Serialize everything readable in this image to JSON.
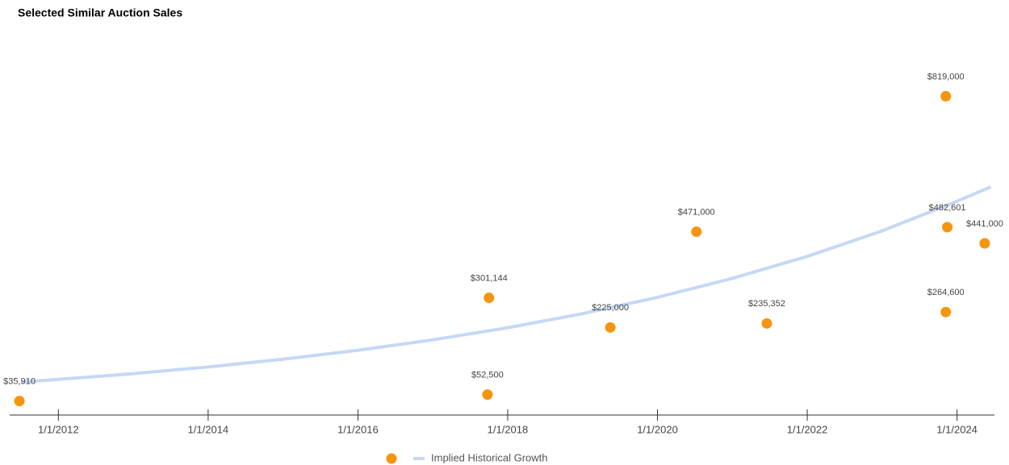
{
  "chart_data": {
    "type": "scatter",
    "title": "Selected Similar Auction Sales",
    "xlim": [
      2011.35,
      2024.5
    ],
    "xticks": [
      {
        "value": 2012,
        "label": "1/1/2012"
      },
      {
        "value": 2014,
        "label": "1/1/2014"
      },
      {
        "value": 2016,
        "label": "1/1/2016"
      },
      {
        "value": 2018,
        "label": "1/1/2018"
      },
      {
        "value": 2020,
        "label": "1/1/2020"
      },
      {
        "value": 2022,
        "label": "1/1/2022"
      },
      {
        "value": 2024,
        "label": "1/1/2024"
      }
    ],
    "ylim": [
      0,
      1000000
    ],
    "series": [
      {
        "type": "scatter",
        "color": "#f5950f",
        "x": [
          2011.48,
          2017.73,
          2017.75,
          2019.37,
          2020.52,
          2021.46,
          2023.85,
          2023.87,
          2023.85,
          2024.37
        ],
        "values": [
          35910,
          52500,
          301144,
          225000,
          471000,
          235352,
          264600,
          482601,
          819000,
          441000
        ],
        "value_labels": [
          "$35,910",
          "$52,500",
          "$301,144",
          "$225,000",
          "$471,000",
          "$235,352",
          "$264,600",
          "$482,601",
          "$819,000",
          "$441,000"
        ]
      },
      {
        "type": "line",
        "name": "Implied Historical Growth",
        "color": "#c6d8f5",
        "x": [
          2011.5,
          2012,
          2013,
          2014,
          2015,
          2016,
          2017,
          2018,
          2019,
          2020,
          2021,
          2022,
          2023,
          2024,
          2024.45
        ],
        "values": [
          85000,
          91600,
          106300,
          123400,
          143300,
          166400,
          193200,
          224300,
          260400,
          302300,
          351000,
          407500,
          473100,
          549300,
          586000
        ]
      }
    ]
  }
}
